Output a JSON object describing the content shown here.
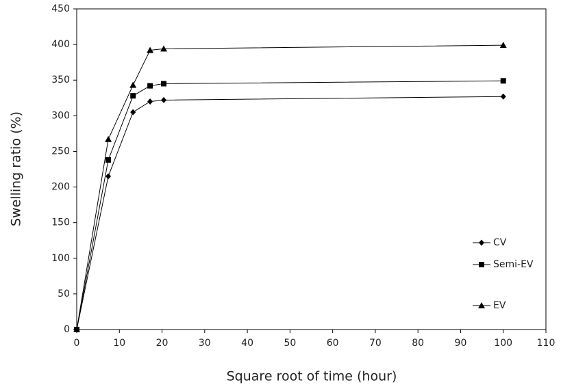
{
  "chart_data": {
    "type": "line",
    "xlabel": "Square root of time (hour)",
    "ylabel": "Swelling ratio (%)",
    "x": [
      0,
      7.4,
      13.2,
      17.2,
      20.4,
      100
    ],
    "series": [
      {
        "name": "CV",
        "color": "#000000",
        "marker": "diamond",
        "values": [
          0,
          215,
          305,
          320,
          322,
          327
        ]
      },
      {
        "name": "Semi-EV",
        "color": "#000000",
        "marker": "square",
        "values": [
          0,
          238,
          328,
          342,
          345,
          349
        ]
      },
      {
        "name": "EV",
        "color": "#000000",
        "marker": "triangle",
        "values": [
          0,
          267,
          343,
          392,
          394,
          399
        ]
      }
    ],
    "xlim": [
      0,
      110
    ],
    "xticks": [
      0,
      10,
      20,
      30,
      40,
      50,
      60,
      70,
      80,
      90,
      100,
      110
    ],
    "ylim": [
      0,
      450
    ],
    "yticks": [
      0,
      50,
      100,
      150,
      200,
      250,
      300,
      350,
      400,
      450
    ],
    "grid": false,
    "legend": "lower right"
  }
}
